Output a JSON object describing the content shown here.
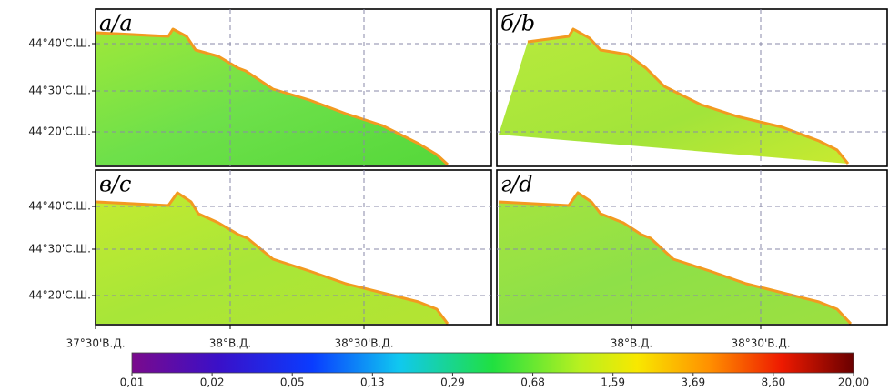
{
  "panels": [
    {
      "label": "а/a"
    },
    {
      "label": "б/b"
    },
    {
      "label": "в/c"
    },
    {
      "label": "г/d"
    }
  ],
  "y_labels": [
    "44°40'С.Ш.",
    "44°30'С.Ш.",
    "44°20'С.Ш."
  ],
  "x_labels_left": [
    "37°30'В.Д.",
    "38°В.Д.",
    "38°30'В.Д."
  ],
  "x_labels_right": [
    "38°В.Д.",
    "38°30'В.Д."
  ],
  "colorbar": {
    "labels": [
      "0,01",
      "0,02",
      "0,05",
      "0,13",
      "0,29",
      "0,68",
      "1,59",
      "3,69",
      "8,60",
      "20,00"
    ]
  }
}
